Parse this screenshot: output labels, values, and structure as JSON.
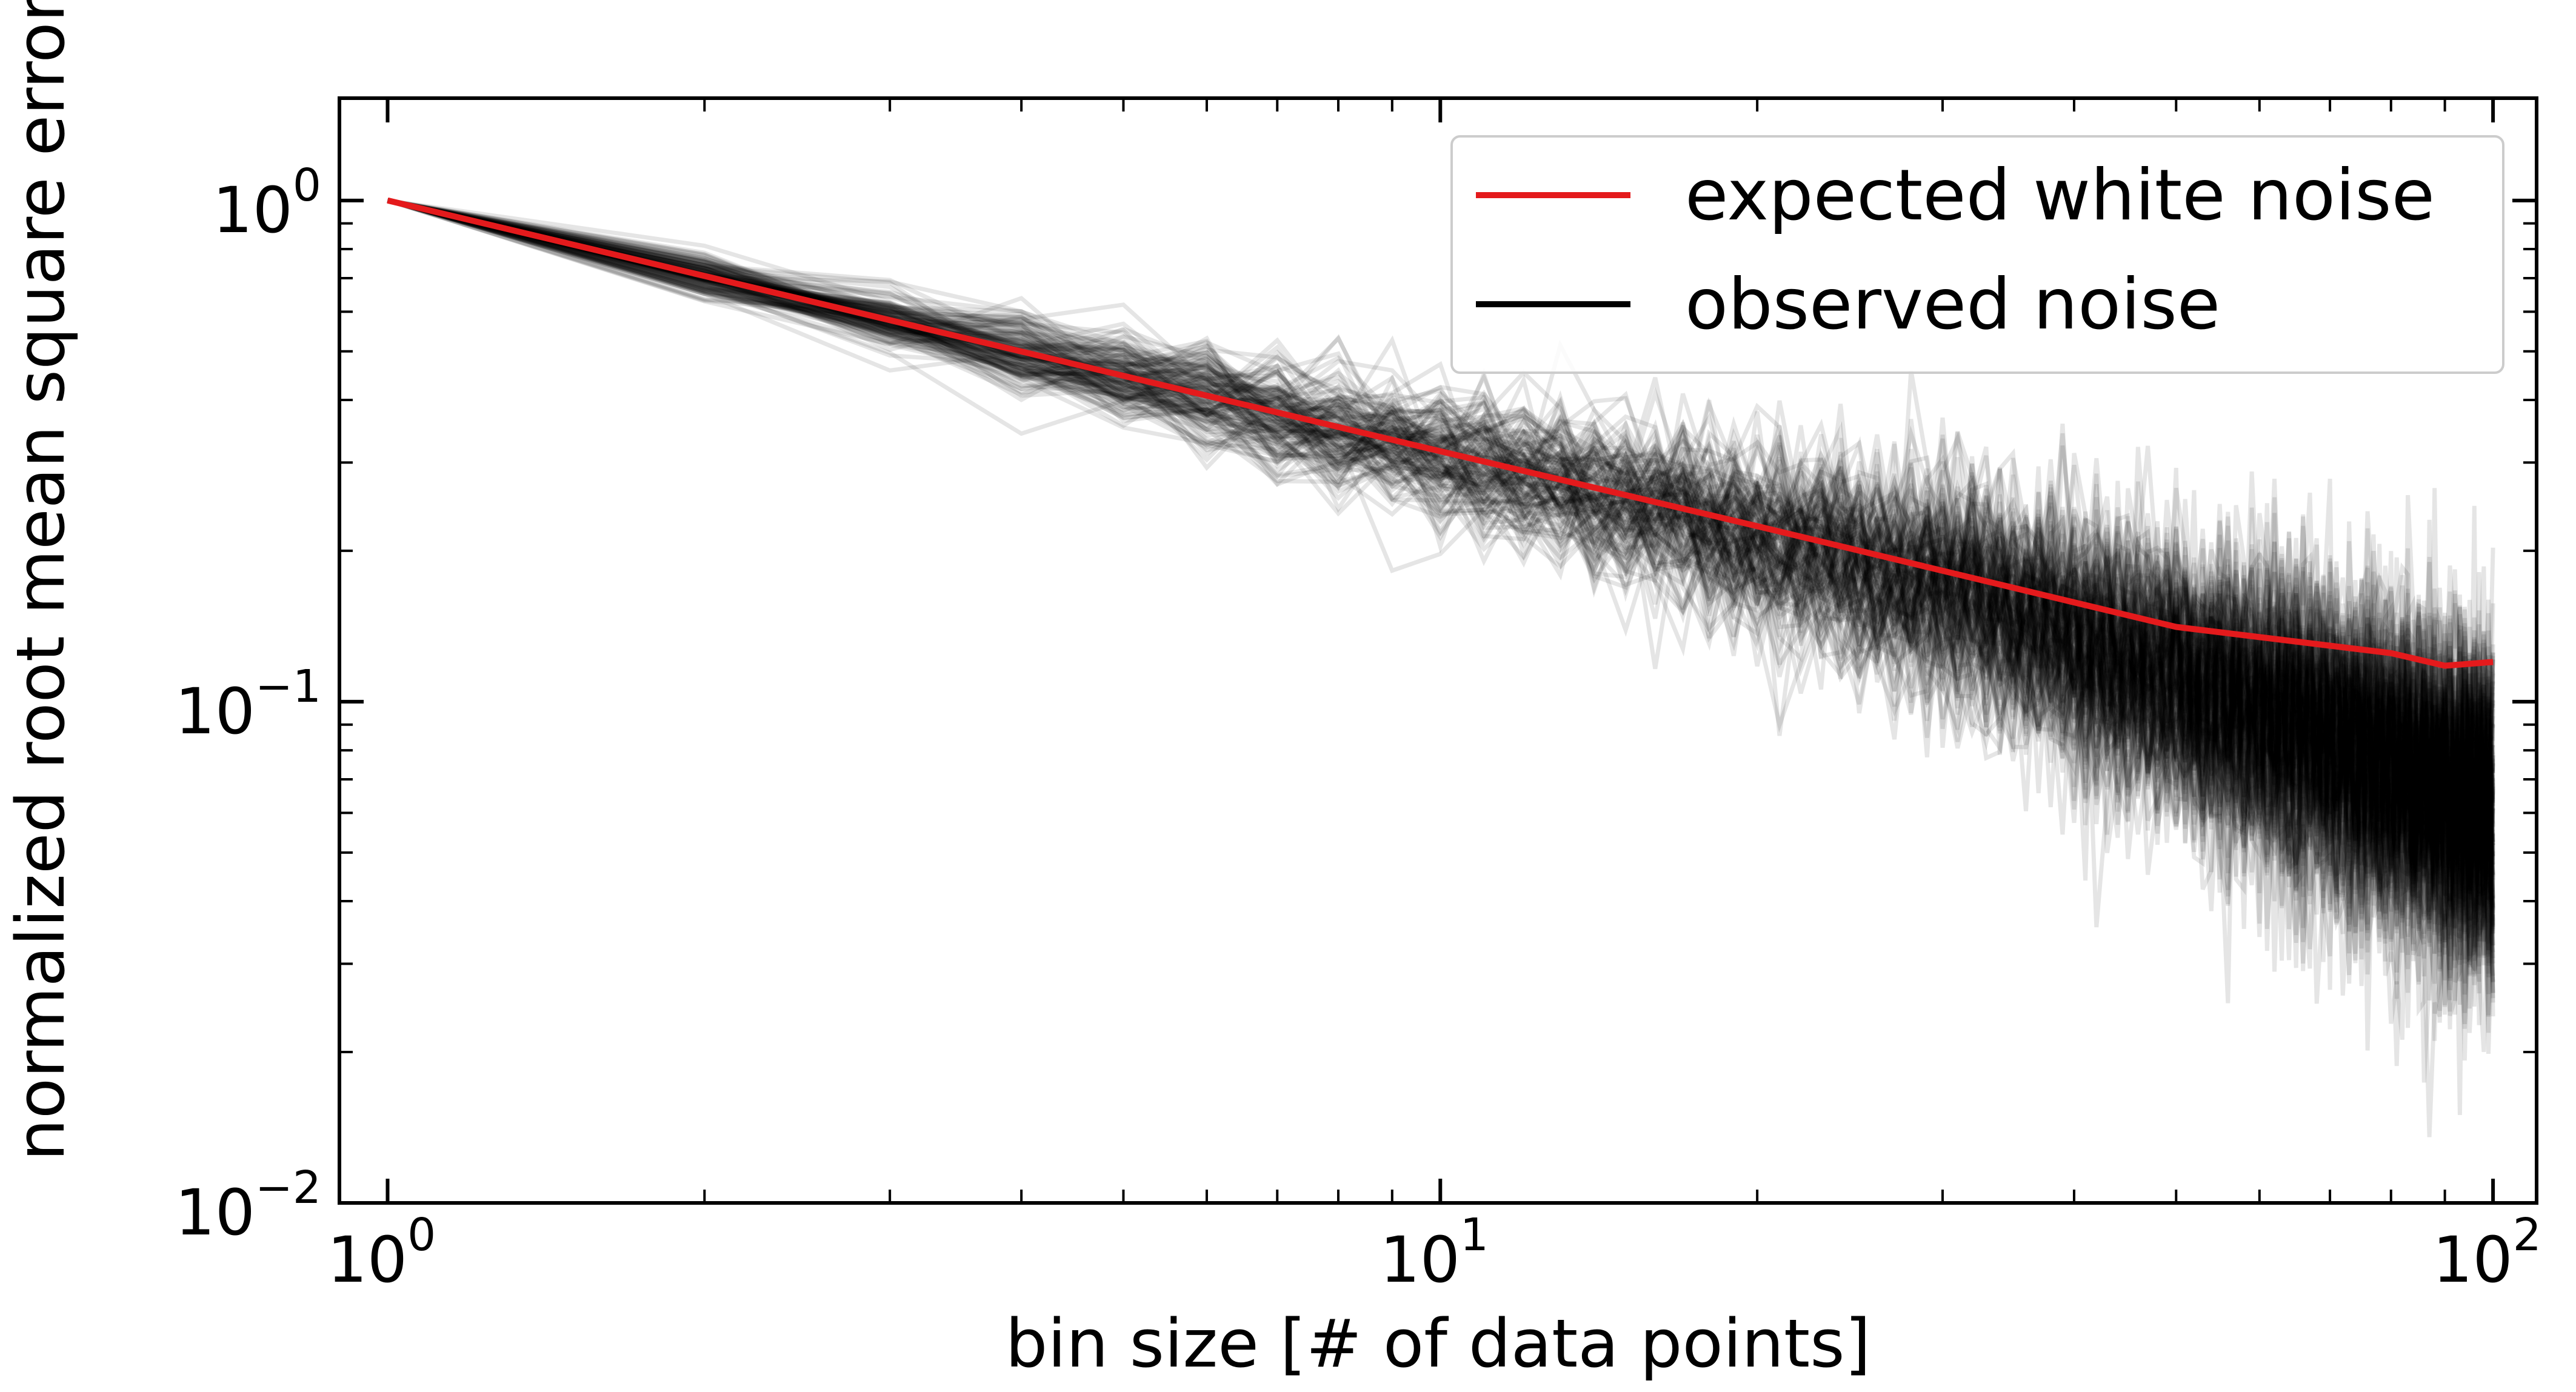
{
  "chart_data": {
    "type": "line",
    "xlabel": "bin size [# of data points]",
    "ylabel": "normalized root mean square error",
    "x_scale": "log",
    "y_scale": "log",
    "xlim": [
      0.9,
      110
    ],
    "ylim": [
      0.01,
      1.6
    ],
    "x_ticks": [
      {
        "value": 1,
        "base": "10",
        "exp": "0"
      },
      {
        "value": 10,
        "base": "10",
        "exp": "1"
      },
      {
        "value": 100,
        "base": "10",
        "exp": "2"
      }
    ],
    "y_ticks": [
      {
        "value": 1,
        "base": "10",
        "exp": "0"
      },
      {
        "value": 0.1,
        "base": "10",
        "exp": "−1"
      },
      {
        "value": 0.01,
        "base": "10",
        "exp": "−2"
      }
    ],
    "grid": false,
    "legend_position": "top-right",
    "series": [
      {
        "name": "expected white noise",
        "color": "#e41a1c",
        "x": [
          1,
          2,
          5,
          10,
          20,
          50,
          80,
          90,
          100
        ],
        "y": [
          1.0,
          0.707,
          0.447,
          0.316,
          0.224,
          0.141,
          0.125,
          0.118,
          0.12
        ]
      },
      {
        "name": "observed noise",
        "color": "#000000",
        "opacity": 0.1,
        "realizations": 150,
        "x_range": [
          1,
          100
        ],
        "median_y": {
          "x": [
            1,
            10,
            30,
            60,
            100
          ],
          "y": [
            1.0,
            0.31,
            0.17,
            0.095,
            0.06
          ]
        },
        "spread_note": ""
      }
    ]
  }
}
